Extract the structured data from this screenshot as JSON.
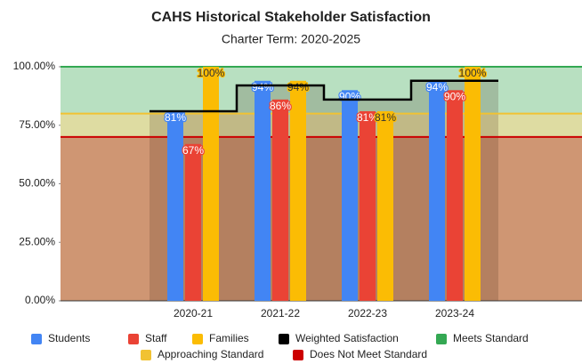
{
  "chart_data": {
    "type": "bar",
    "title": "CAHS Historical Stakeholder Satisfaction",
    "subtitle": "Charter Term:  2020-2025",
    "categories": [
      "2020-21",
      "2021-22",
      "2022-23",
      "2023-24"
    ],
    "ylim": [
      0,
      100
    ],
    "yticks": [
      {
        "value": 0,
        "label": "0.00%"
      },
      {
        "value": 25,
        "label": "25.00%"
      },
      {
        "value": 50,
        "label": "50.00%"
      },
      {
        "value": 75,
        "label": "75.00%"
      },
      {
        "value": 100,
        "label": "100.00%"
      }
    ],
    "series": [
      {
        "name": "Students",
        "color": "#4285f4",
        "label_color": "#ffffff",
        "label_stroke": "#4285f4",
        "values": [
          81,
          94,
          90,
          94
        ],
        "value_labels": [
          "81%",
          "94%",
          "90%",
          "94%"
        ]
      },
      {
        "name": "Staff",
        "color": "#ea4335",
        "label_color": "#ffffff",
        "label_stroke": "#ea4335",
        "values": [
          67,
          86,
          81,
          90
        ],
        "value_labels": [
          "67%",
          "86%",
          "81%",
          "90%"
        ]
      },
      {
        "name": "Families",
        "color": "#fbbc04",
        "label_color": "#333333",
        "label_stroke": "#fbbc04",
        "values": [
          100,
          94,
          81,
          100
        ],
        "value_labels": [
          "100%",
          "94%",
          "81%",
          "100%"
        ]
      }
    ],
    "weighted": {
      "name": "Weighted Satisfaction",
      "color": "#000000",
      "values": [
        81,
        92,
        86,
        94
      ]
    },
    "bands": [
      {
        "name": "Meets Standard",
        "color": "#34a853",
        "fill": "#b8e0c1",
        "values": [
          100,
          100,
          100,
          100
        ]
      },
      {
        "name": "Approaching Standard",
        "color": "#f1c232",
        "fill": "#dedca2",
        "values": [
          80,
          80,
          80,
          80
        ]
      },
      {
        "name": "Does Not Meet Standard",
        "color": "#cc0000",
        "fill": "#cf9673",
        "values": [
          70,
          70,
          70,
          70
        ]
      }
    ]
  }
}
